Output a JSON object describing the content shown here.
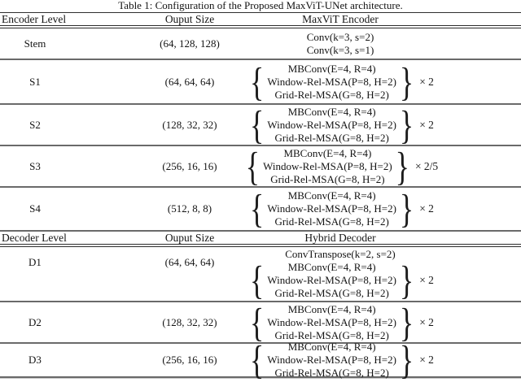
{
  "table": {
    "title": "Table 1: Configuration of the Proposed MaxViT-UNet architecture.",
    "brace_left": "{",
    "brace_right": "}",
    "encoder": {
      "headers": [
        "Encoder Level",
        "Ouput Size",
        "MaxViT Encoder"
      ],
      "rows": [
        {
          "level": "Stem",
          "size": "(64, 128, 128)",
          "lines": [
            "Conv(k=3, s=2)",
            "Conv(k=3, s=1)"
          ]
        },
        {
          "level": "S1",
          "size": "(64, 64, 64)",
          "block": {
            "lines": [
              "MBConv(E=4, R=4)",
              "Window-Rel-MSA(P=8, H=2)",
              "Grid-Rel-MSA(G=8, H=2)"
            ],
            "multiplier": "× 2"
          }
        },
        {
          "level": "S2",
          "size": "(128, 32, 32)",
          "block": {
            "lines": [
              "MBConv(E=4, R=4)",
              "Window-Rel-MSA(P=8, H=2)",
              "Grid-Rel-MSA(G=8, H=2)"
            ],
            "multiplier": "× 2"
          }
        },
        {
          "level": "S3",
          "size": "(256, 16, 16)",
          "block": {
            "lines": [
              "MBConv(E=4, R=4)",
              "Window-Rel-MSA(P=8, H=2)",
              "Grid-Rel-MSA(G=8, H=2)"
            ],
            "multiplier": "× 2/5"
          }
        },
        {
          "level": "S4",
          "size": "(512, 8, 8)",
          "block": {
            "lines": [
              "MBConv(E=4, R=4)",
              "Window-Rel-MSA(P=8, H=2)",
              "Grid-Rel-MSA(G=8, H=2)"
            ],
            "multiplier": "× 2"
          }
        }
      ]
    },
    "decoder": {
      "headers": [
        "Decoder Level",
        "Ouput Size",
        "Hybrid Decoder"
      ],
      "rows": [
        {
          "level": "D1",
          "size": "(64, 64, 64)",
          "pre_line": "ConvTranspose(k=2, s=2)",
          "block": {
            "lines": [
              "MBConv(E=4, R=4)",
              "Window-Rel-MSA(P=8, H=2)",
              "Grid-Rel-MSA(G=8, H=2)"
            ],
            "multiplier": "× 2"
          }
        },
        {
          "level": "D2",
          "size": "(128, 32, 32)",
          "block": {
            "lines": [
              "MBConv(E=4, R=4)",
              "Window-Rel-MSA(P=8, H=2)",
              "Grid-Rel-MSA(G=8, H=2)"
            ],
            "multiplier": "× 2"
          }
        },
        {
          "level": "D3",
          "size": "(256, 16, 16)",
          "block": {
            "lines": [
              "MBConv(E=4, R=4)",
              "Window-Rel-MSA(P=8, H=2)",
              "Grid-Rel-MSA(G=8, H=2)"
            ],
            "multiplier": "× 2"
          }
        }
      ]
    }
  }
}
